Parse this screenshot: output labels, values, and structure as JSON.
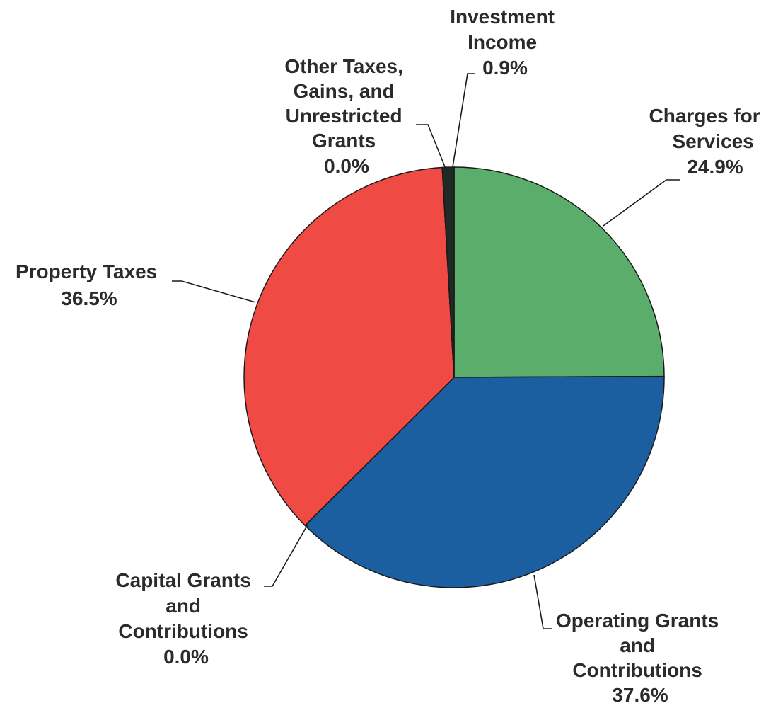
{
  "chart_data": {
    "type": "pie",
    "start_angle_deg": 0,
    "direction": "clockwise",
    "slices": [
      {
        "lines": [
          "Charges for",
          "Services",
          "24.9%"
        ],
        "value": 24.9,
        "color": "#5aad6a"
      },
      {
        "lines": [
          "Operating Grants",
          "and",
          "Contributions",
          "37.6%"
        ],
        "value": 37.6,
        "color": "#1b5fa0"
      },
      {
        "lines": [
          "Capital Grants",
          "and",
          "Contributions",
          "0.0%"
        ],
        "value": 0.0,
        "color": "#6a6a6a"
      },
      {
        "lines": [
          "Property Taxes",
          "36.5%"
        ],
        "value": 36.5,
        "color": "#f04a45"
      },
      {
        "lines": [
          "Other Taxes,",
          "Gains, and",
          "Unrestricted",
          "Grants",
          "0.0%"
        ],
        "value": 0.0,
        "color": "#6a6a6a"
      },
      {
        "lines": [
          "Investment",
          "Income",
          "0.9%"
        ],
        "value": 0.9,
        "color": "#1f2a24"
      }
    ]
  }
}
